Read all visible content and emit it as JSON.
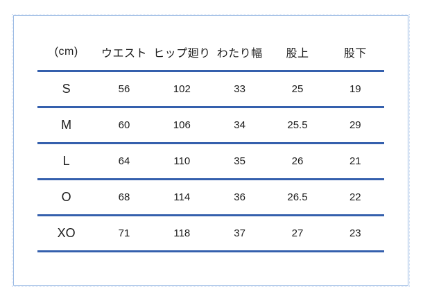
{
  "chart_data": {
    "type": "table",
    "title": "",
    "unit": "(cm)",
    "columns": [
      "(cm)",
      "ウエスト",
      "ヒップ廻り",
      "わたり幅",
      "股上",
      "股下"
    ],
    "rows": [
      {
        "size": "S",
        "values": [
          "56",
          "102",
          "33",
          "25",
          "19"
        ]
      },
      {
        "size": "M",
        "values": [
          "60",
          "106",
          "34",
          "25.5",
          "29"
        ]
      },
      {
        "size": "L",
        "values": [
          "64",
          "110",
          "35",
          "26",
          "21"
        ]
      },
      {
        "size": "O",
        "values": [
          "68",
          "114",
          "36",
          "26.5",
          "22"
        ]
      },
      {
        "size": "XO",
        "values": [
          "71",
          "118",
          "37",
          "27",
          "23"
        ]
      }
    ],
    "layout": {
      "rule_color": "#3560ad",
      "frame_border_color": "#9cbbe4",
      "text_color": "#1c1c1c",
      "grid": "horizontal-rules-only"
    }
  }
}
